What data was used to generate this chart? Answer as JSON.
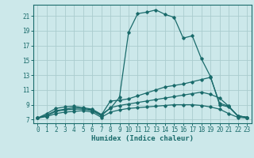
{
  "xlabel": "Humidex (Indice chaleur)",
  "background_color": "#cce8ea",
  "grid_color": "#aaccce",
  "line_color": "#1a6b6b",
  "xlim": [
    -0.5,
    23.5
  ],
  "ylim": [
    6.5,
    22.5
  ],
  "xticks": [
    0,
    1,
    2,
    3,
    4,
    5,
    6,
    7,
    8,
    9,
    10,
    11,
    12,
    13,
    14,
    15,
    16,
    17,
    18,
    19,
    20,
    21,
    22,
    23
  ],
  "yticks": [
    7,
    9,
    11,
    13,
    15,
    17,
    19,
    21
  ],
  "lines": [
    {
      "x": [
        0,
        1,
        2,
        3,
        4,
        5,
        6,
        7,
        8,
        9,
        10,
        11,
        12,
        13,
        14,
        15,
        16,
        17,
        18,
        19,
        20,
        21,
        22,
        23
      ],
      "y": [
        7.2,
        7.8,
        8.5,
        8.7,
        8.8,
        8.6,
        8.4,
        7.7,
        8.5,
        10.0,
        18.8,
        21.3,
        21.5,
        21.8,
        21.2,
        20.8,
        18.0,
        18.3,
        15.2,
        12.8,
        9.0,
        8.7,
        7.5,
        7.3
      ]
    },
    {
      "x": [
        0,
        1,
        2,
        3,
        4,
        5,
        6,
        7,
        8,
        9,
        10,
        11,
        12,
        13,
        14,
        15,
        16,
        17,
        18,
        19,
        20,
        21,
        22,
        23
      ],
      "y": [
        7.2,
        7.6,
        8.2,
        8.4,
        8.6,
        8.5,
        8.3,
        7.6,
        9.5,
        9.6,
        9.8,
        10.2,
        10.6,
        11.0,
        11.4,
        11.6,
        11.8,
        12.1,
        12.4,
        12.7,
        9.2,
        8.8,
        7.5,
        7.3
      ]
    },
    {
      "x": [
        0,
        1,
        2,
        3,
        4,
        5,
        6,
        7,
        8,
        9,
        10,
        11,
        12,
        13,
        14,
        15,
        16,
        17,
        18,
        19,
        20,
        21,
        22,
        23
      ],
      "y": [
        7.2,
        7.5,
        8.1,
        8.3,
        8.4,
        8.4,
        8.2,
        7.5,
        8.6,
        8.9,
        9.1,
        9.3,
        9.5,
        9.7,
        9.9,
        10.1,
        10.3,
        10.5,
        10.7,
        10.4,
        9.9,
        8.8,
        7.5,
        7.3
      ]
    },
    {
      "x": [
        0,
        1,
        2,
        3,
        4,
        5,
        6,
        7,
        8,
        9,
        10,
        11,
        12,
        13,
        14,
        15,
        16,
        17,
        18,
        19,
        20,
        21,
        22,
        23
      ],
      "y": [
        7.2,
        7.4,
        7.8,
        8.0,
        8.1,
        8.2,
        8.0,
        7.3,
        8.0,
        8.3,
        8.5,
        8.6,
        8.7,
        8.8,
        8.9,
        9.0,
        9.0,
        9.0,
        8.9,
        8.7,
        8.4,
        7.8,
        7.3,
        7.2
      ]
    }
  ]
}
